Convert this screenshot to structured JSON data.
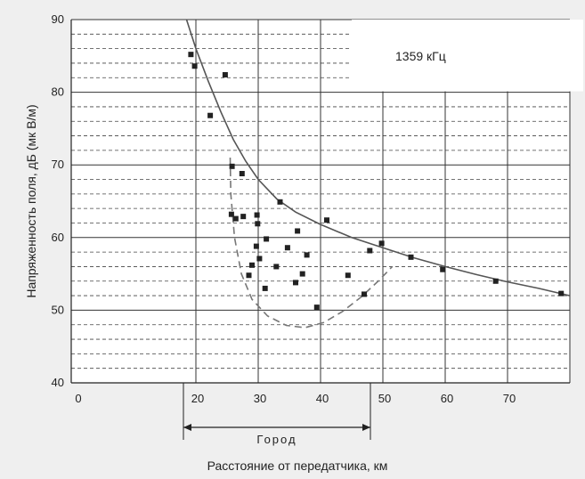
{
  "chart_data": {
    "type": "scatter",
    "title": "",
    "annotation": "1359 кГц",
    "xlabel": "Расстояние от передатчика, км",
    "ylabel": "Напряженность поля, дБ (мк В/м)",
    "xlim": [
      0,
      80
    ],
    "ylim": [
      40,
      90
    ],
    "x_ticks": [
      "0",
      "20",
      "30",
      "40",
      "50",
      "60",
      "70"
    ],
    "y_ticks": [
      "40",
      "50",
      "60",
      "70",
      "80",
      "90"
    ],
    "grid": true,
    "range_marker": {
      "label": "Город",
      "from": 18,
      "to": 48
    },
    "series": [
      {
        "type": "scatter",
        "points": [
          [
            19.2,
            85.2
          ],
          [
            19.8,
            83.6
          ],
          [
            24.7,
            82.4
          ],
          [
            22.3,
            76.8
          ],
          [
            25.8,
            69.8
          ],
          [
            27.4,
            68.8
          ],
          [
            25.7,
            63.2
          ],
          [
            26.4,
            62.6
          ],
          [
            27.6,
            62.9
          ],
          [
            29.8,
            63.1
          ],
          [
            29.9,
            61.9
          ],
          [
            33.5,
            64.9
          ],
          [
            31.3,
            59.8
          ],
          [
            36.3,
            60.9
          ],
          [
            29.7,
            58.8
          ],
          [
            34.7,
            58.6
          ],
          [
            37.8,
            57.6
          ],
          [
            30.2,
            57.1
          ],
          [
            29.0,
            56.2
          ],
          [
            32.9,
            56.0
          ],
          [
            28.5,
            54.8
          ],
          [
            31.1,
            53.0
          ],
          [
            36.0,
            53.8
          ],
          [
            37.1,
            55.0
          ],
          [
            44.4,
            54.8
          ],
          [
            47.0,
            52.2
          ],
          [
            39.4,
            50.4
          ],
          [
            41.0,
            62.4
          ],
          [
            47.9,
            58.2
          ],
          [
            49.8,
            59.2
          ],
          [
            54.5,
            57.3
          ],
          [
            59.6,
            55.6
          ],
          [
            68.1,
            54.0
          ],
          [
            78.6,
            52.3
          ]
        ]
      },
      {
        "type": "line",
        "style": "solid",
        "points": [
          [
            18.5,
            90.0
          ],
          [
            20.0,
            86.0
          ],
          [
            22.0,
            81.5
          ],
          [
            24.0,
            77.3
          ],
          [
            26.0,
            73.5
          ],
          [
            28.0,
            70.5
          ],
          [
            30.0,
            68.0
          ],
          [
            33.0,
            65.3
          ],
          [
            36.0,
            63.5
          ],
          [
            40.0,
            61.8
          ],
          [
            45.0,
            60.0
          ],
          [
            50.0,
            58.6
          ],
          [
            55.0,
            57.2
          ],
          [
            60.0,
            56.0
          ],
          [
            65.0,
            54.9
          ],
          [
            70.0,
            53.9
          ],
          [
            75.0,
            53.0
          ],
          [
            80.0,
            52.0
          ]
        ]
      },
      {
        "type": "line",
        "style": "dashed",
        "points": [
          [
            25.5,
            71.0
          ],
          [
            25.6,
            66.0
          ],
          [
            26.2,
            60.0
          ],
          [
            27.3,
            55.0
          ],
          [
            29.0,
            51.5
          ],
          [
            31.5,
            49.2
          ],
          [
            34.5,
            47.9
          ],
          [
            37.5,
            47.6
          ],
          [
            40.5,
            48.3
          ],
          [
            43.5,
            49.8
          ],
          [
            46.5,
            51.8
          ],
          [
            49.5,
            54.2
          ],
          [
            51.5,
            56.0
          ]
        ]
      }
    ]
  }
}
